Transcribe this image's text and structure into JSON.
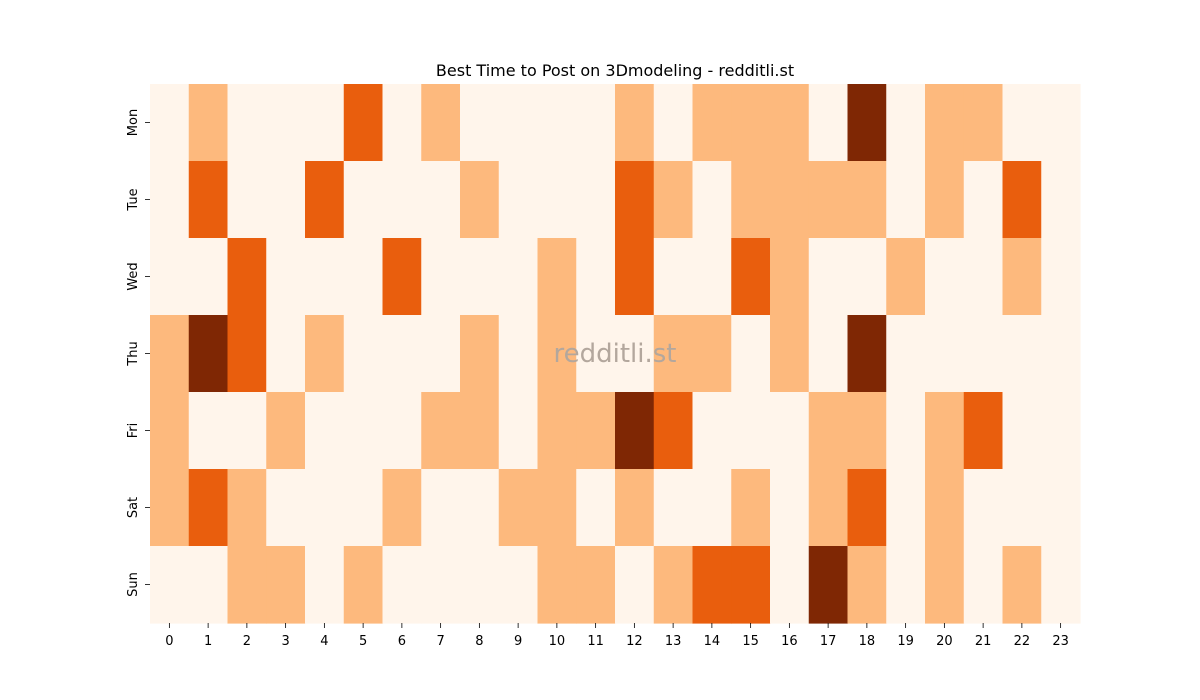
{
  "chart_data": {
    "type": "heatmap",
    "title": "Best Time to Post on 3Dmodeling - redditli.st",
    "watermark": "redditli.st",
    "xlabel": "",
    "ylabel": "",
    "x_categories": [
      "0",
      "1",
      "2",
      "3",
      "4",
      "5",
      "6",
      "7",
      "8",
      "9",
      "10",
      "11",
      "12",
      "13",
      "14",
      "15",
      "16",
      "17",
      "18",
      "19",
      "20",
      "21",
      "22",
      "23"
    ],
    "y_categories": [
      "Mon",
      "Tue",
      "Wed",
      "Thu",
      "Fri",
      "Sat",
      "Sun"
    ],
    "value_range": [
      0,
      3
    ],
    "colors": [
      "#fff5eb",
      "#fdb97d",
      "#e95e0d",
      "#7f2704"
    ],
    "values": [
      [
        0,
        1,
        0,
        0,
        0,
        2,
        0,
        1,
        0,
        0,
        0,
        0,
        1,
        0,
        1,
        1,
        1,
        0,
        3,
        0,
        1,
        1,
        0,
        0
      ],
      [
        0,
        2,
        0,
        0,
        2,
        0,
        0,
        0,
        1,
        0,
        0,
        0,
        2,
        1,
        0,
        1,
        1,
        1,
        1,
        0,
        1,
        0,
        2,
        0
      ],
      [
        0,
        0,
        2,
        0,
        0,
        0,
        2,
        0,
        0,
        0,
        1,
        0,
        2,
        0,
        0,
        2,
        1,
        0,
        0,
        1,
        0,
        0,
        1,
        0
      ],
      [
        1,
        3,
        2,
        0,
        1,
        0,
        0,
        0,
        1,
        0,
        1,
        0,
        0,
        1,
        1,
        0,
        1,
        0,
        3,
        0,
        0,
        0,
        0,
        0
      ],
      [
        1,
        0,
        0,
        1,
        0,
        0,
        0,
        1,
        1,
        0,
        1,
        1,
        3,
        2,
        0,
        0,
        0,
        1,
        1,
        0,
        1,
        2,
        0,
        0
      ],
      [
        1,
        2,
        1,
        0,
        0,
        0,
        1,
        0,
        0,
        1,
        1,
        0,
        1,
        0,
        0,
        1,
        0,
        1,
        2,
        0,
        1,
        0,
        0,
        0
      ],
      [
        0,
        0,
        1,
        1,
        0,
        1,
        0,
        0,
        0,
        0,
        1,
        1,
        0,
        1,
        2,
        2,
        0,
        3,
        1,
        0,
        1,
        0,
        1,
        0
      ]
    ]
  }
}
